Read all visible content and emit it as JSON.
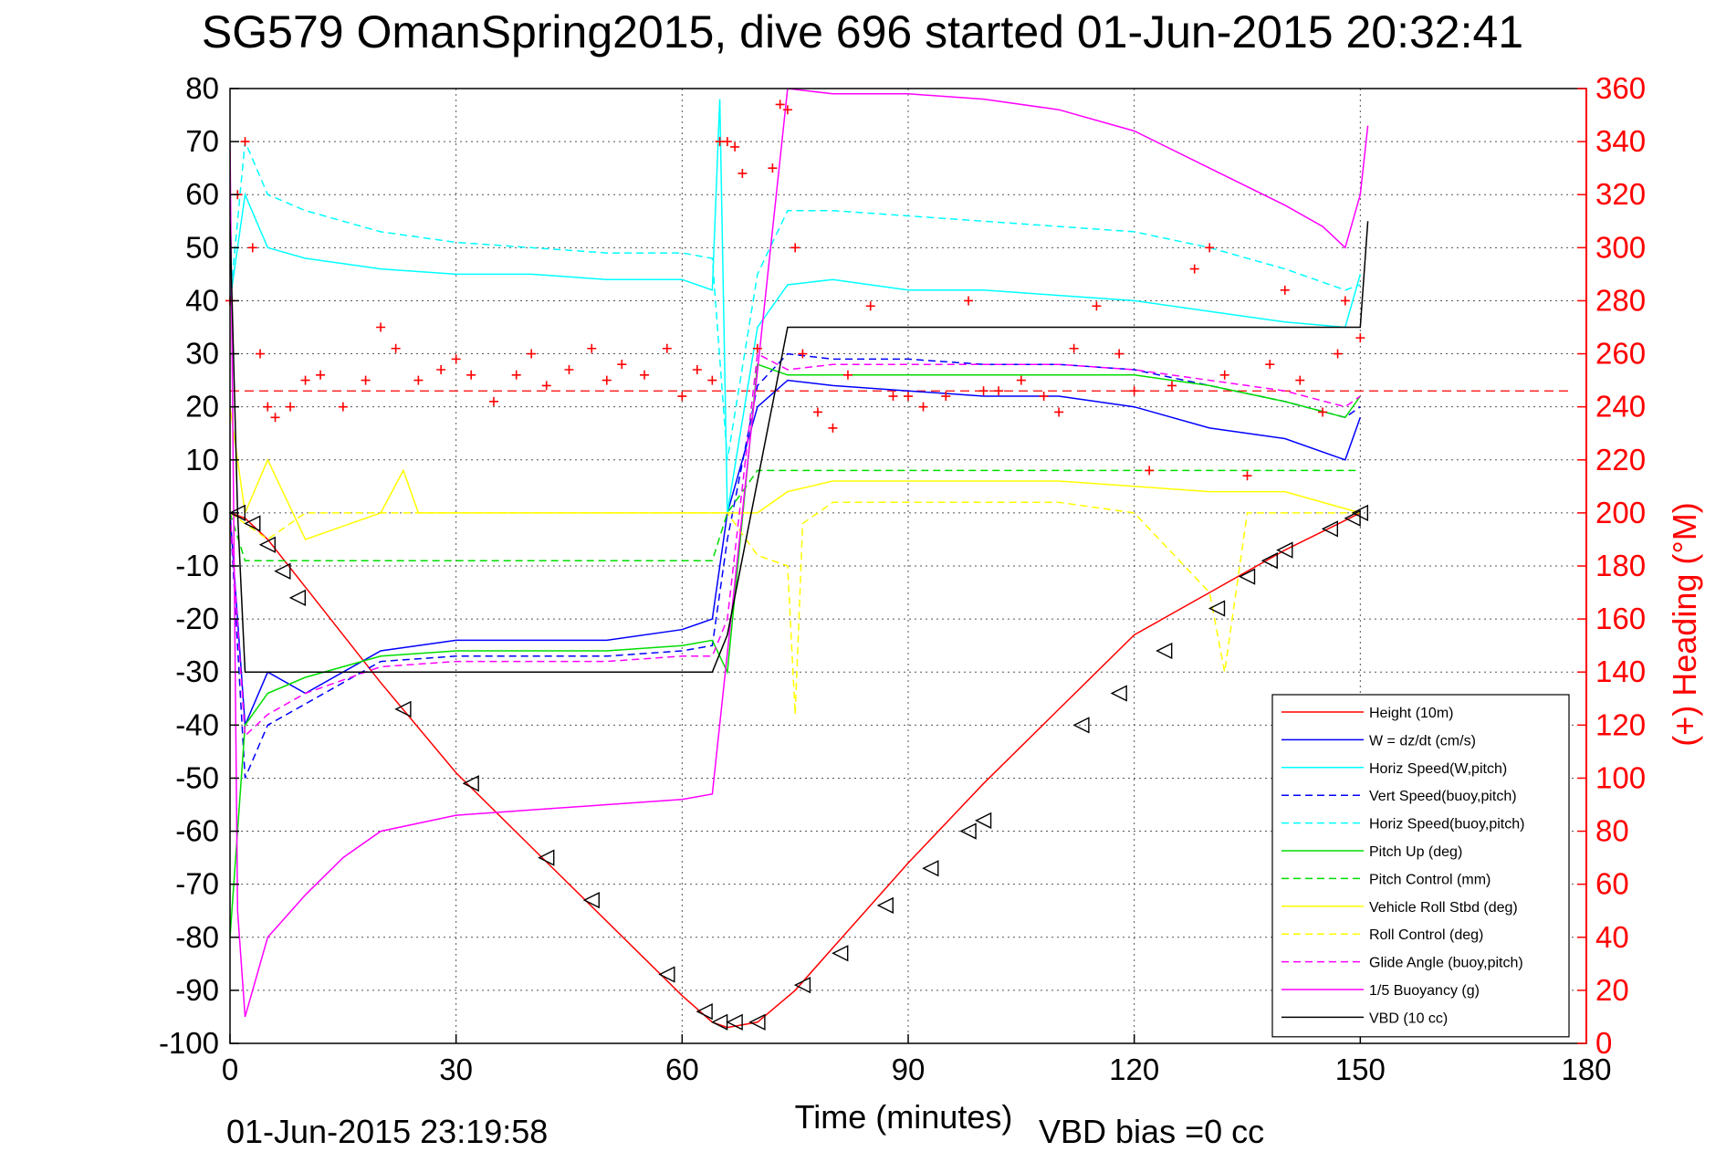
{
  "chart_data": {
    "type": "line",
    "title": "SG579 OmanSpring2015, dive 696 started 01-Jun-2015 20:32:41",
    "xlabel": "Time (minutes)",
    "ylabel_right": "(+) Heading (°M)",
    "xlim": [
      0,
      180
    ],
    "ylim": [
      -100,
      80
    ],
    "ylim_right": [
      0,
      360
    ],
    "x_ticks": [
      "0",
      "30",
      "60",
      "90",
      "120",
      "150",
      "180"
    ],
    "y_ticks": [
      "-100",
      "-90",
      "-80",
      "-70",
      "-60",
      "-50",
      "-40",
      "-30",
      "-20",
      "-10",
      "0",
      "10",
      "20",
      "30",
      "40",
      "50",
      "60",
      "70",
      "80"
    ],
    "y_ticks_right": [
      "0",
      "20",
      "40",
      "60",
      "80",
      "100",
      "120",
      "140",
      "160",
      "180",
      "200",
      "220",
      "240",
      "260",
      "280",
      "300",
      "320",
      "340",
      "360"
    ],
    "grid": true,
    "legend_position": "bottom-right",
    "footer_left": "01-Jun-2015 23:19:58",
    "footer_right": "VBD bias =0 cc",
    "series": [
      {
        "name": "Height (10m)",
        "color": "#ff0000",
        "style": "solid",
        "x": [
          0,
          2,
          5,
          10,
          20,
          30,
          40,
          50,
          60,
          64,
          66,
          70,
          75,
          80,
          90,
          100,
          110,
          120,
          130,
          140,
          150
        ],
        "y": [
          0,
          -1,
          -5,
          -14,
          -32,
          -49,
          -63,
          -77,
          -91,
          -96,
          -97,
          -96,
          -90,
          -82,
          -66,
          -51,
          -37,
          -23,
          -15,
          -7,
          0
        ]
      },
      {
        "name": "W = dz/dt (cm/s)",
        "color": "#0000ff",
        "style": "solid",
        "x": [
          0,
          2,
          5,
          10,
          20,
          30,
          40,
          50,
          60,
          64,
          66,
          70,
          74,
          80,
          90,
          100,
          110,
          120,
          130,
          140,
          148,
          150
        ],
        "y": [
          0,
          -40,
          -30,
          -34,
          -26,
          -24,
          -24,
          -24,
          -22,
          -20,
          0,
          20,
          25,
          24,
          23,
          22,
          22,
          20,
          16,
          14,
          10,
          18
        ]
      },
      {
        "name": "Horiz Speed(W,pitch)",
        "color": "#00ffff",
        "style": "solid",
        "x": [
          0,
          2,
          5,
          10,
          20,
          30,
          40,
          50,
          60,
          64,
          65,
          66,
          70,
          74,
          80,
          90,
          100,
          110,
          120,
          130,
          140,
          148,
          150
        ],
        "y": [
          40,
          60,
          50,
          48,
          46,
          45,
          45,
          44,
          44,
          42,
          78,
          0,
          35,
          43,
          44,
          42,
          42,
          41,
          40,
          38,
          36,
          35,
          45
        ]
      },
      {
        "name": "Vert Speed(buoy,pitch)",
        "color": "#0000ff",
        "style": "dashed",
        "x": [
          0,
          2,
          5,
          10,
          20,
          30,
          40,
          50,
          60,
          64,
          66,
          70,
          74,
          80,
          90,
          100,
          110,
          120,
          130,
          140,
          148,
          150
        ],
        "y": [
          0,
          -50,
          -40,
          -36,
          -28,
          -27,
          -27,
          -27,
          -26,
          -25,
          -5,
          24,
          30,
          29,
          29,
          28,
          28,
          27,
          24,
          21,
          18,
          20
        ]
      },
      {
        "name": "Horiz Speed(buoy,pitch)",
        "color": "#00ffff",
        "style": "dashed",
        "x": [
          0,
          2,
          5,
          10,
          20,
          30,
          40,
          50,
          60,
          64,
          66,
          70,
          74,
          80,
          90,
          100,
          110,
          120,
          130,
          140,
          148,
          150
        ],
        "y": [
          40,
          70,
          60,
          57,
          53,
          51,
          50,
          49,
          49,
          48,
          10,
          45,
          57,
          57,
          56,
          55,
          54,
          53,
          50,
          46,
          42,
          43
        ]
      },
      {
        "name": "Pitch Up (deg)",
        "color": "#00dd00",
        "style": "solid",
        "x": [
          0,
          2,
          5,
          10,
          20,
          30,
          40,
          50,
          60,
          64,
          66,
          70,
          74,
          80,
          90,
          100,
          110,
          120,
          130,
          140,
          148,
          150
        ],
        "y": [
          -80,
          -40,
          -34,
          -31,
          -27,
          -26,
          -26,
          -26,
          -25,
          -24,
          -30,
          28,
          26,
          26,
          26,
          26,
          26,
          26,
          24,
          21,
          18,
          22
        ]
      },
      {
        "name": "Pitch Control (mm)",
        "color": "#00dd00",
        "style": "dashed",
        "x": [
          0,
          2,
          64,
          66,
          70,
          150
        ],
        "y": [
          0,
          -9,
          -9,
          0,
          8,
          8
        ]
      },
      {
        "name": "Vehicle Roll Stbd (deg)",
        "color": "#ffff00",
        "style": "solid",
        "x": [
          0,
          2,
          5,
          10,
          20,
          23,
          25,
          30,
          40,
          50,
          60,
          64,
          66,
          70,
          74,
          80,
          90,
          100,
          110,
          120,
          130,
          140,
          150
        ],
        "y": [
          20,
          0,
          10,
          -5,
          0,
          8,
          0,
          0,
          0,
          0,
          0,
          0,
          0,
          0,
          4,
          6,
          6,
          6,
          6,
          5,
          4,
          4,
          0
        ]
      },
      {
        "name": "Roll Control (deg)",
        "color": "#ffff00",
        "style": "dashed",
        "x": [
          0,
          5,
          10,
          60,
          66,
          70,
          74,
          75,
          76,
          80,
          90,
          100,
          110,
          120,
          130,
          132,
          135,
          140,
          150
        ],
        "y": [
          0,
          -5,
          0,
          0,
          0,
          -8,
          -10,
          -38,
          -2,
          2,
          2,
          2,
          2,
          0,
          -15,
          -30,
          0,
          0,
          0
        ]
      },
      {
        "name": "Glide Angle (buoy,pitch)",
        "color": "#ff00ff",
        "style": "dashed",
        "x": [
          0,
          2,
          5,
          10,
          20,
          30,
          40,
          50,
          60,
          64,
          66,
          70,
          74,
          80,
          90,
          100,
          110,
          120,
          130,
          140,
          148,
          150
        ],
        "y": [
          0,
          -42,
          -38,
          -34,
          -29,
          -28,
          -28,
          -28,
          -27,
          -27,
          -20,
          30,
          27,
          28,
          28,
          28,
          28,
          27,
          25,
          23,
          20,
          22
        ]
      },
      {
        "name": "1/5 Buoyancy (g)",
        "color": "#ff00ff",
        "style": "solid",
        "x": [
          0,
          1,
          2,
          5,
          10,
          15,
          20,
          30,
          40,
          50,
          60,
          64,
          74,
          80,
          90,
          100,
          110,
          120,
          130,
          140,
          145,
          148,
          150,
          151
        ],
        "y": [
          70,
          -75,
          -95,
          -80,
          -72,
          -65,
          -60,
          -57,
          -56,
          -55,
          -54,
          -53,
          80,
          79,
          79,
          78,
          76,
          72,
          65,
          58,
          54,
          50,
          60,
          73
        ]
      },
      {
        "name": "VBD (10 cc)",
        "color": "#000000",
        "style": "solid",
        "x": [
          0,
          1,
          2,
          64,
          66,
          74,
          150,
          151
        ],
        "y": [
          55,
          0,
          -30,
          -30,
          -23,
          35,
          35,
          55
        ]
      }
    ],
    "heading_series": {
      "name": "Heading",
      "color": "#ff0000",
      "marker": "+",
      "mean_heading": 246,
      "x": [
        0,
        1,
        2,
        3,
        4,
        5,
        6,
        8,
        10,
        12,
        15,
        18,
        20,
        22,
        25,
        28,
        30,
        32,
        35,
        38,
        40,
        42,
        45,
        48,
        50,
        52,
        55,
        58,
        60,
        62,
        64,
        65,
        66,
        67,
        68,
        70,
        72,
        73,
        74,
        75,
        76,
        78,
        80,
        82,
        85,
        88,
        90,
        92,
        95,
        98,
        100,
        102,
        105,
        108,
        110,
        112,
        115,
        118,
        120,
        122,
        125,
        128,
        130,
        132,
        135,
        138,
        140,
        142,
        145,
        147,
        148,
        150
      ],
      "y": [
        280,
        320,
        340,
        300,
        260,
        240,
        236,
        240,
        250,
        252,
        240,
        250,
        270,
        262,
        250,
        254,
        258,
        252,
        242,
        252,
        260,
        248,
        254,
        262,
        250,
        256,
        252,
        262,
        244,
        254,
        250,
        340,
        340,
        338,
        328,
        262,
        330,
        354,
        352,
        300,
        260,
        238,
        232,
        252,
        278,
        244,
        244,
        240,
        244,
        280,
        246,
        246,
        250,
        244,
        238,
        262,
        278,
        260,
        246,
        216,
        248,
        292,
        300,
        252,
        214,
        256,
        284,
        250,
        238,
        260,
        280,
        266
      ]
    },
    "depth_markers": {
      "marker": "triangle",
      "color": "#000000",
      "x": [
        1,
        3,
        5,
        7,
        9,
        23,
        32,
        42,
        48,
        58,
        63,
        65,
        67,
        70,
        76,
        81,
        87,
        93,
        98,
        100,
        113,
        118,
        124,
        131,
        135,
        138,
        140,
        146,
        149,
        150
      ],
      "y": [
        0,
        -2,
        -6,
        -11,
        -16,
        -37,
        -51,
        -65,
        -73,
        -87,
        -94,
        -96,
        -96,
        -96,
        -89,
        -83,
        -74,
        -67,
        -60,
        -58,
        -40,
        -34,
        -26,
        -18,
        -12,
        -9,
        -7,
        -3,
        -1,
        0
      ]
    }
  }
}
